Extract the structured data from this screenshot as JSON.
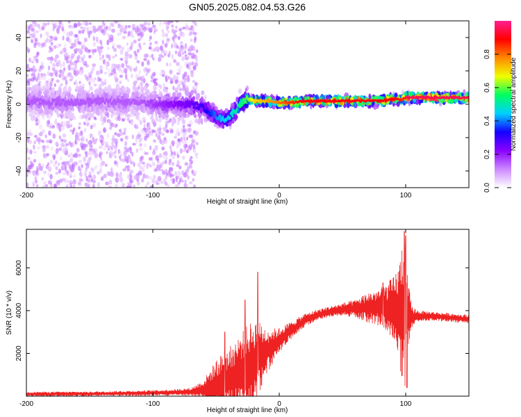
{
  "figure": {
    "title": "GN05.2025.082.04.53.G26"
  },
  "chart_data": [
    {
      "type": "heatmap",
      "name": "spectrogram",
      "xlabel": "Height of straight line (km)",
      "ylabel": "Frequency (Hz)",
      "xlim": [
        -200,
        150
      ],
      "ylim": [
        -50,
        50
      ],
      "x_ticks": [
        -200,
        -100,
        0,
        100
      ],
      "y_ticks": [
        -40,
        -20,
        0,
        20,
        40
      ],
      "grid": false,
      "colorbar": {
        "label": "Normalized spectral amplitude",
        "range": [
          0.0,
          1.0
        ],
        "ticks": [
          0.0,
          0.2,
          0.4,
          0.6,
          0.8
        ],
        "tick_labels": [
          "0.0",
          "0.2",
          "0.4",
          "0.6",
          "0.8"
        ],
        "colors": [
          "#ffffff",
          "#cc88ff",
          "#8a00ff",
          "#1400ff",
          "#00d0ff",
          "#00ff60",
          "#f0ff00",
          "#ff8800",
          "#ff0000",
          "#ff2090"
        ]
      },
      "ridge": {
        "x": [
          -200,
          -170,
          -140,
          -110,
          -90,
          -70,
          -60,
          -50,
          -45,
          -40,
          -35,
          -30,
          -25,
          -20,
          -10,
          0,
          10,
          20,
          40,
          60,
          80,
          90,
          98,
          100,
          150
        ],
        "frequency": [
          2,
          1,
          2,
          1,
          0,
          0,
          -2,
          -7,
          -9,
          -8,
          -4,
          1,
          3,
          2,
          2,
          1,
          1,
          2,
          2,
          2,
          2,
          3,
          3,
          4,
          4
        ],
        "amplitude": [
          0.15,
          0.15,
          0.15,
          0.15,
          0.2,
          0.25,
          0.3,
          0.4,
          0.45,
          0.45,
          0.5,
          0.55,
          0.6,
          0.7,
          0.75,
          0.8,
          0.85,
          0.9,
          0.9,
          0.9,
          0.9,
          0.9,
          0.85,
          0.95,
          0.95
        ]
      }
    },
    {
      "type": "line",
      "name": "snr",
      "xlabel": "Height of straight line (km)",
      "ylabel": "SNR (10 * v/v)",
      "xlim": [
        -200,
        150
      ],
      "ylim": [
        0,
        7800
      ],
      "x_ticks": [
        -200,
        -100,
        0,
        100
      ],
      "y_ticks": [
        2000,
        4000,
        6000
      ],
      "grid": false,
      "color": "#ee2222",
      "envelope": {
        "x": [
          -200,
          -150,
          -100,
          -80,
          -70,
          -60,
          -55,
          -50,
          -45,
          -40,
          -35,
          -30,
          -25,
          -20,
          -15,
          -10,
          -5,
          0,
          10,
          20,
          30,
          40,
          50,
          60,
          70,
          80,
          85,
          90,
          95,
          98,
          100,
          102,
          105,
          110,
          120,
          130,
          140,
          150
        ],
        "base": [
          100,
          110,
          150,
          180,
          200,
          300,
          400,
          500,
          600,
          750,
          900,
          1100,
          1300,
          1600,
          1850,
          2100,
          2350,
          2600,
          3100,
          3550,
          3800,
          3950,
          4050,
          4100,
          4150,
          4150,
          4100,
          4050,
          3950,
          3900,
          3850,
          3800,
          3700,
          3750,
          3750,
          3700,
          3650,
          3600
        ],
        "spread": [
          100,
          100,
          120,
          150,
          180,
          450,
          800,
          1200,
          1400,
          1500,
          1700,
          1900,
          2000,
          2000,
          1600,
          1100,
          800,
          600,
          400,
          300,
          250,
          250,
          300,
          400,
          700,
          900,
          1200,
          1500,
          2300,
          3800,
          3400,
          1500,
          500,
          250,
          200,
          200,
          200,
          200
        ]
      },
      "peaks": [
        {
          "x": -43,
          "y": 3000
        },
        {
          "x": -27,
          "y": 4500
        },
        {
          "x": -17,
          "y": 5800
        },
        {
          "x": 82,
          "y": 5300
        },
        {
          "x": 99,
          "y": 7700
        },
        {
          "x": 100,
          "y": 7500
        },
        {
          "x": 101,
          "y": 400
        }
      ]
    }
  ]
}
